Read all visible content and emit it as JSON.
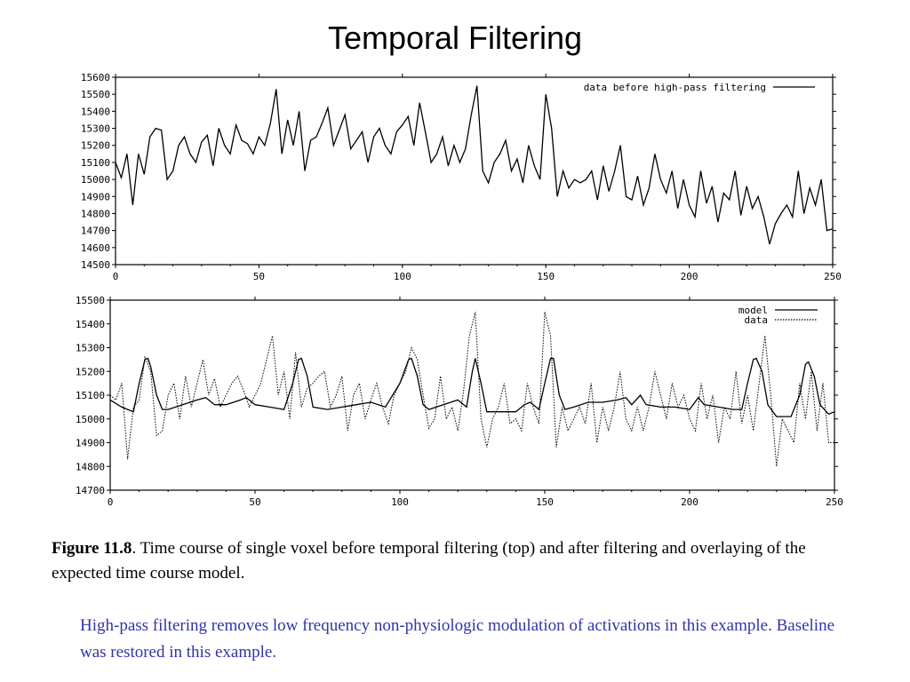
{
  "title": "Temporal Filtering",
  "caption": {
    "label": "Figure 11.8",
    "text": ".  Time course of single voxel before temporal filtering (top) and after filtering and overlaying of the expected time course model."
  },
  "note": "High-pass filtering removes low frequency non-physiologic modulation of activations in this example. Baseline was restored in this example.",
  "chart_data": [
    {
      "type": "line",
      "title": "",
      "xlabel": "",
      "ylabel": "",
      "xlim": [
        0,
        250
      ],
      "ylim": [
        14500,
        15600
      ],
      "xticks": [
        "0",
        "50",
        "100",
        "150",
        "200",
        "250"
      ],
      "yticks": [
        "14500",
        "14600",
        "14700",
        "14800",
        "14900",
        "15000",
        "15100",
        "15200",
        "15300",
        "15400",
        "15500",
        "15600"
      ],
      "grid": false,
      "legend_position": "top-right",
      "series": [
        {
          "name": "data before high-pass filtering",
          "style": "solid",
          "color": "#000000",
          "x": [
            0,
            2,
            4,
            6,
            8,
            10,
            12,
            14,
            16,
            18,
            20,
            22,
            24,
            26,
            28,
            30,
            32,
            34,
            36,
            38,
            40,
            42,
            44,
            46,
            48,
            50,
            52,
            54,
            56,
            58,
            60,
            62,
            64,
            66,
            68,
            70,
            72,
            74,
            76,
            78,
            80,
            82,
            84,
            86,
            88,
            90,
            92,
            94,
            96,
            98,
            100,
            102,
            104,
            106,
            108,
            110,
            112,
            114,
            116,
            118,
            120,
            122,
            124,
            126,
            128,
            130,
            132,
            134,
            136,
            138,
            140,
            142,
            144,
            146,
            148,
            150,
            152,
            154,
            156,
            158,
            160,
            162,
            164,
            166,
            168,
            170,
            172,
            174,
            176,
            178,
            180,
            182,
            184,
            186,
            188,
            190,
            192,
            194,
            196,
            198,
            200,
            202,
            204,
            206,
            208,
            210,
            212,
            214,
            216,
            218,
            220,
            222,
            224,
            226,
            228,
            230,
            232,
            234,
            236,
            238,
            240,
            242,
            244,
            246,
            248,
            250
          ],
          "values": [
            15100,
            15010,
            15150,
            14850,
            15150,
            15030,
            15250,
            15300,
            15290,
            15000,
            15050,
            15200,
            15250,
            15150,
            15100,
            15220,
            15260,
            15080,
            15300,
            15200,
            15150,
            15320,
            15230,
            15210,
            15150,
            15250,
            15200,
            15330,
            15530,
            15150,
            15350,
            15200,
            15400,
            15050,
            15230,
            15250,
            15330,
            15420,
            15200,
            15290,
            15380,
            15180,
            15230,
            15280,
            15100,
            15250,
            15300,
            15200,
            15150,
            15280,
            15320,
            15370,
            15200,
            15450,
            15280,
            15100,
            15150,
            15250,
            15080,
            15200,
            15100,
            15180,
            15380,
            15550,
            15050,
            14980,
            15100,
            15150,
            15230,
            15050,
            15120,
            14980,
            15200,
            15080,
            15000,
            15500,
            15300,
            14900,
            15050,
            14950,
            15000,
            14980,
            15000,
            15050,
            14880,
            15080,
            14930,
            15050,
            15200,
            14900,
            14880,
            15020,
            14850,
            14950,
            15150,
            15000,
            14920,
            15050,
            14830,
            15000,
            14850,
            14780,
            15050,
            14860,
            14960,
            14750,
            14920,
            14880,
            15050,
            14790,
            14960,
            14830,
            14900,
            14780,
            14620,
            14740,
            14800,
            14850,
            14780,
            15050,
            14800,
            14950,
            14850,
            15000,
            14700,
            14710
          ],
          "y_values": [
            15100,
            15010,
            15150,
            14850,
            15150,
            15030,
            15250,
            15300,
            15290,
            15000,
            15050,
            15200,
            15250,
            15150,
            15100,
            15220,
            15260,
            15080,
            15300,
            15200,
            15150,
            15320,
            15230,
            15210,
            15150,
            15250,
            15200,
            15330,
            15530,
            15150,
            15350,
            15200,
            15400,
            15050,
            15230,
            15250,
            15330,
            15420,
            15200,
            15290,
            15380,
            15180,
            15230,
            15280,
            15100,
            15250,
            15300,
            15200,
            15150,
            15280,
            15320,
            15370,
            15200,
            15450,
            15280,
            15100,
            15150,
            15250,
            15080,
            15200,
            15100,
            15180,
            15380,
            15550,
            15050,
            14980,
            15100,
            15150,
            15230,
            15050,
            15120,
            14980,
            15200,
            15080,
            15000,
            15500,
            15300,
            14900,
            15050,
            14950,
            15000,
            14980,
            15000,
            15050,
            14880,
            15080,
            14930,
            15050,
            15200,
            14900,
            14880,
            15020,
            14850,
            14950,
            15150,
            15000,
            14920,
            15050,
            14830,
            15000,
            14850,
            14780,
            15050,
            14860,
            14960,
            14750,
            14920,
            14880,
            15050,
            14790,
            14960,
            14830,
            14900,
            14780,
            14620,
            14740,
            14800,
            14850,
            14780,
            15050,
            14800,
            14950,
            14850,
            15000,
            14700,
            14710
          ]
        }
      ]
    },
    {
      "type": "line",
      "title": "",
      "xlabel": "",
      "ylabel": "",
      "xlim": [
        0,
        250
      ],
      "ylim": [
        14700,
        15500
      ],
      "xticks": [
        "0",
        "50",
        "100",
        "150",
        "200",
        "250"
      ],
      "yticks": [
        "14700",
        "14800",
        "14900",
        "15000",
        "15100",
        "15200",
        "15300",
        "15400",
        "15500"
      ],
      "grid": false,
      "legend_position": "top-right",
      "series": [
        {
          "name": "model",
          "style": "solid",
          "color": "#000000",
          "x": [
            0,
            4,
            8,
            10,
            12,
            13,
            14,
            16,
            18,
            20,
            25,
            30,
            33,
            36,
            40,
            45,
            47,
            50,
            55,
            60,
            63,
            65,
            66,
            68,
            70,
            75,
            80,
            85,
            90,
            95,
            100,
            103,
            104,
            106,
            108,
            110,
            115,
            120,
            123,
            125,
            126,
            128,
            130,
            135,
            140,
            143,
            145,
            148,
            150,
            152,
            153,
            155,
            157,
            160,
            165,
            170,
            175,
            178,
            180,
            183,
            185,
            190,
            195,
            200,
            203,
            205,
            210,
            215,
            218,
            220,
            222,
            223,
            225,
            227,
            230,
            235,
            238,
            240,
            241,
            243,
            245,
            248,
            250
          ],
          "values": [
            15080,
            15050,
            15030,
            15150,
            15250,
            15255,
            15220,
            15100,
            15040,
            15040,
            15060,
            15080,
            15090,
            15060,
            15060,
            15080,
            15090,
            15060,
            15050,
            15040,
            15150,
            15250,
            15255,
            15180,
            15050,
            15040,
            15050,
            15060,
            15070,
            15050,
            15150,
            15250,
            15255,
            15180,
            15060,
            15040,
            15060,
            15080,
            15050,
            15200,
            15255,
            15150,
            15030,
            15030,
            15030,
            15060,
            15070,
            15040,
            15150,
            15255,
            15255,
            15100,
            15040,
            15050,
            15070,
            15070,
            15080,
            15090,
            15060,
            15100,
            15060,
            15050,
            15050,
            15040,
            15090,
            15060,
            15050,
            15040,
            15040,
            15150,
            15250,
            15255,
            15200,
            15060,
            15010,
            15010,
            15100,
            15230,
            15240,
            15180,
            15060,
            15020,
            15030
          ]
        },
        {
          "name": "data",
          "style": "dotted",
          "color": "#000000",
          "x": [
            0,
            2,
            4,
            6,
            8,
            10,
            12,
            14,
            16,
            18,
            20,
            22,
            24,
            26,
            28,
            30,
            32,
            34,
            36,
            38,
            40,
            42,
            44,
            46,
            48,
            50,
            52,
            54,
            56,
            58,
            60,
            62,
            64,
            66,
            68,
            70,
            72,
            74,
            76,
            78,
            80,
            82,
            84,
            86,
            88,
            90,
            92,
            94,
            96,
            98,
            100,
            102,
            104,
            106,
            108,
            110,
            112,
            114,
            116,
            118,
            120,
            122,
            124,
            126,
            128,
            130,
            132,
            134,
            136,
            138,
            140,
            142,
            144,
            146,
            148,
            150,
            152,
            154,
            156,
            158,
            160,
            162,
            164,
            166,
            168,
            170,
            172,
            174,
            176,
            178,
            180,
            182,
            184,
            186,
            188,
            190,
            192,
            194,
            196,
            198,
            200,
            202,
            204,
            206,
            208,
            210,
            212,
            214,
            216,
            218,
            220,
            222,
            224,
            226,
            228,
            230,
            232,
            234,
            236,
            238,
            240,
            242,
            244,
            246,
            248,
            250
          ],
          "values": [
            15100,
            15080,
            15150,
            14830,
            15050,
            15080,
            15260,
            15200,
            14930,
            14950,
            15100,
            15150,
            15000,
            15180,
            15050,
            15150,
            15250,
            15100,
            15170,
            15050,
            15100,
            15150,
            15180,
            15120,
            15050,
            15100,
            15150,
            15250,
            15350,
            15100,
            15200,
            15000,
            15280,
            15050,
            15130,
            15150,
            15180,
            15200,
            15050,
            15100,
            15180,
            14950,
            15100,
            15150,
            15000,
            15080,
            15150,
            15050,
            14980,
            15100,
            15150,
            15200,
            15300,
            15250,
            15100,
            14960,
            15000,
            15180,
            15000,
            15050,
            14950,
            15120,
            15350,
            15450,
            15000,
            14880,
            15000,
            15050,
            15150,
            14980,
            15000,
            14950,
            15150,
            15050,
            14980,
            15450,
            15350,
            14880,
            15050,
            14950,
            15000,
            15050,
            14980,
            15150,
            14900,
            15050,
            14950,
            15050,
            15200,
            15000,
            14950,
            15050,
            14950,
            15050,
            15200,
            15100,
            15000,
            15150,
            15050,
            15100,
            15000,
            14950,
            15150,
            15000,
            15100,
            14900,
            15050,
            15000,
            15200,
            14980,
            15100,
            14950,
            15150,
            15350,
            15100,
            14800,
            15000,
            14950,
            14900,
            15150,
            15000,
            15200,
            14950,
            15150,
            14900,
            14900
          ]
        }
      ]
    }
  ]
}
